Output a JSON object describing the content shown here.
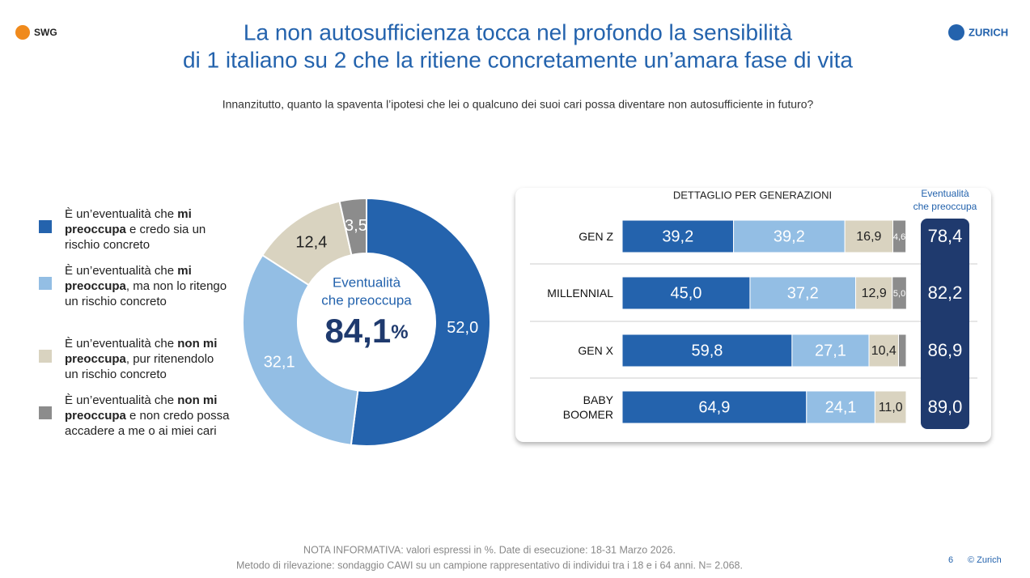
{
  "header": {
    "logo_left": "SWG",
    "logo_right": "ZURICH",
    "title": [
      "La non autosufficienza tocca nel profondo la sensibilità",
      "di 1 italiano su 2 che la ritiene concretamente un’amara fase di vita"
    ],
    "subtitle": "Innanzitutto, quanto la spaventa l’ipotesi che lei o qualcuno dei suoi cari possa diventare non autosufficiente in futuro?"
  },
  "chart_data": [
    {
      "type": "donut",
      "categories": [
        [
          {
            "text": "È un’eventualità che ",
            "bold": false
          },
          {
            "text": "mi preoccupa",
            "bold": true
          },
          {
            "text": " e credo sia un rischio concreto",
            "bold": false
          }
        ],
        [
          {
            "text": "È un’eventualità che ",
            "bold": false
          },
          {
            "text": "mi preoccupa",
            "bold": true
          },
          {
            "text": ", ma non lo ritengo un rischio concreto",
            "bold": false
          }
        ],
        [
          {
            "text": "È un’eventualità che ",
            "bold": false
          },
          {
            "text": "non mi preoccupa",
            "bold": true
          },
          {
            "text": ", pur ritenendolo un rischio concreto",
            "bold": false
          }
        ],
        [
          {
            "text": "È un’eventualità che ",
            "bold": false
          },
          {
            "text": "non mi preoccupa",
            "bold": true
          },
          {
            "text": " e non credo possa accadere a me o ai miei cari",
            "bold": false
          }
        ]
      ],
      "colors": [
        "#2463ad",
        "#93bee4",
        "#d9d3c0",
        "#8c8c8c"
      ],
      "values": [
        52.0,
        32.1,
        12.4,
        3.5
      ],
      "value_labels": [
        "52,0",
        "32,1",
        "12,4",
        "3,5"
      ],
      "center_title": [
        "Eventualità",
        "che preoccupa"
      ],
      "center_value": 84.1,
      "center_value_label": "84,1",
      "center_unit": "%"
    },
    {
      "type": "stacked-barh",
      "title": "DETTAGLIO PER GENERAZIONI",
      "categories": [
        "GEN Z",
        "MILLENNIAL",
        "GEN X",
        "BABY\nBOOMER"
      ],
      "xlim": [
        0,
        100
      ],
      "series": [
        {
          "color": "#2463ad",
          "values": [
            39.2,
            45.0,
            59.8,
            64.9
          ],
          "value_labels": [
            "39,2",
            "45,0",
            "59,8",
            "64,9"
          ]
        },
        {
          "color": "#93bee4",
          "values": [
            39.2,
            37.2,
            27.1,
            24.1
          ],
          "value_labels": [
            "39,2",
            "37,2",
            "27,1",
            "24,1"
          ]
        },
        {
          "color": "#d9d3c0",
          "values": [
            16.9,
            12.9,
            10.4,
            11.0
          ],
          "value_labels": [
            "16,9",
            "12,9",
            "10,4",
            "11,0"
          ]
        },
        {
          "color": "#8c8c8c",
          "values": [
            4.6,
            5.0,
            2.7,
            0
          ],
          "value_labels": [
            "4,6",
            "5,0",
            null,
            null
          ]
        }
      ],
      "totals": {
        "title": [
          "Eventualità",
          "che preoccupa"
        ],
        "color": "#1f3a6e",
        "values": [
          78.4,
          82.2,
          86.9,
          89.0
        ],
        "value_labels": [
          "78,4",
          "82,2",
          "86,9",
          "89,0"
        ]
      }
    }
  ],
  "footer": {
    "note": [
      "NOTA INFORMATIVA: valori espressi in %. Date di esecuzione: 18-31 Marzo 2026.",
      "Metodo di rilevazione: sondaggio CAWI su un campione rappresentativo di individui tra i 18 e i 64 anni. N= 2.068."
    ],
    "page": "6",
    "copyright": "© Zurich"
  }
}
